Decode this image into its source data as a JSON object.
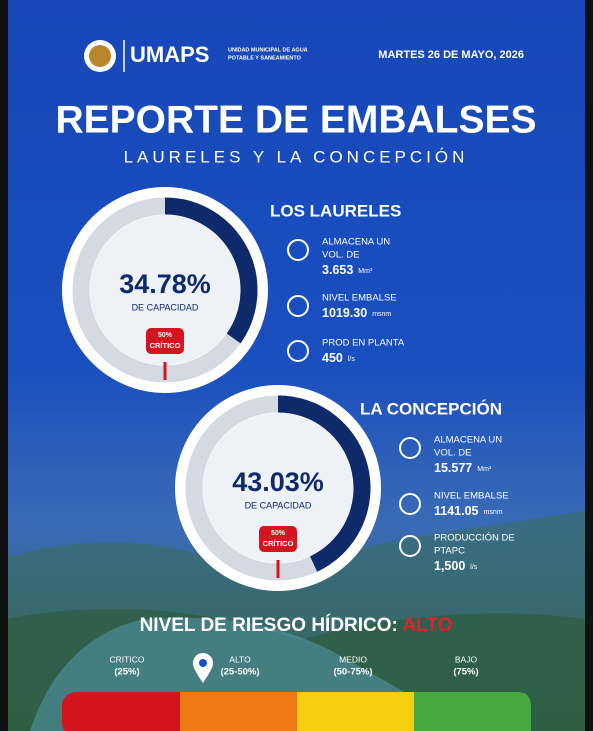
{
  "header": {
    "brand": "UMAPS",
    "org_line1": "UNIDAD MUNICIPAL DE AGUA",
    "org_line2": "POTABLE Y SANEAMIENTO",
    "date": "MARTES 26 DE MAYO, 2026"
  },
  "title": "REPORTE DE EMBALSES",
  "subtitle": "LAURELES Y LA CONCEPCIÓN",
  "reservoirs": [
    {
      "name": "LOS LAURELES",
      "capacity": 34.78,
      "capacity_label": "34.78%",
      "capacity_text": "DE CAPACIDAD",
      "critical": 50,
      "critical_label": "50%",
      "critical_text": "CRÍTICO",
      "stats": [
        {
          "lines": [
            "ALMACENA UN",
            "VOL. DE"
          ],
          "value": "3.653",
          "unit": "Mm³"
        },
        {
          "lines": [
            "NIVEL EMBALSE"
          ],
          "value": "1019.30",
          "unit": "msnm"
        },
        {
          "lines": [
            "PROD EN PLANTA"
          ],
          "value": "450",
          "unit": "l/s"
        }
      ]
    },
    {
      "name": "LA CONCEPCIÓN",
      "capacity": 43.03,
      "capacity_label": "43.03%",
      "capacity_text": "DE CAPACIDAD",
      "critical": 50,
      "critical_label": "50%",
      "critical_text": "CRÍTICO",
      "stats": [
        {
          "lines": [
            "ALMACENA UN",
            "VOL. DE"
          ],
          "value": "15.577",
          "unit": "Mm³"
        },
        {
          "lines": [
            "NIVEL EMBALSE"
          ],
          "value": "1141.05",
          "unit": "msnm"
        },
        {
          "lines": [
            "PRODUCCIÓN DE",
            "PTAPC"
          ],
          "value": "1,500",
          "unit": "l/s"
        }
      ]
    }
  ],
  "risk": {
    "title": "NIVEL DE RIESGO HÍDRICO:",
    "level": "ALTO",
    "levels": [
      {
        "name": "CRITICO",
        "range": "(25%)"
      },
      {
        "name": "ALTO",
        "range": "(25-50%)"
      },
      {
        "name": "MEDIO",
        "range": "(50-75%)"
      },
      {
        "name": "BAJO",
        "range": "(75%)"
      }
    ]
  }
}
